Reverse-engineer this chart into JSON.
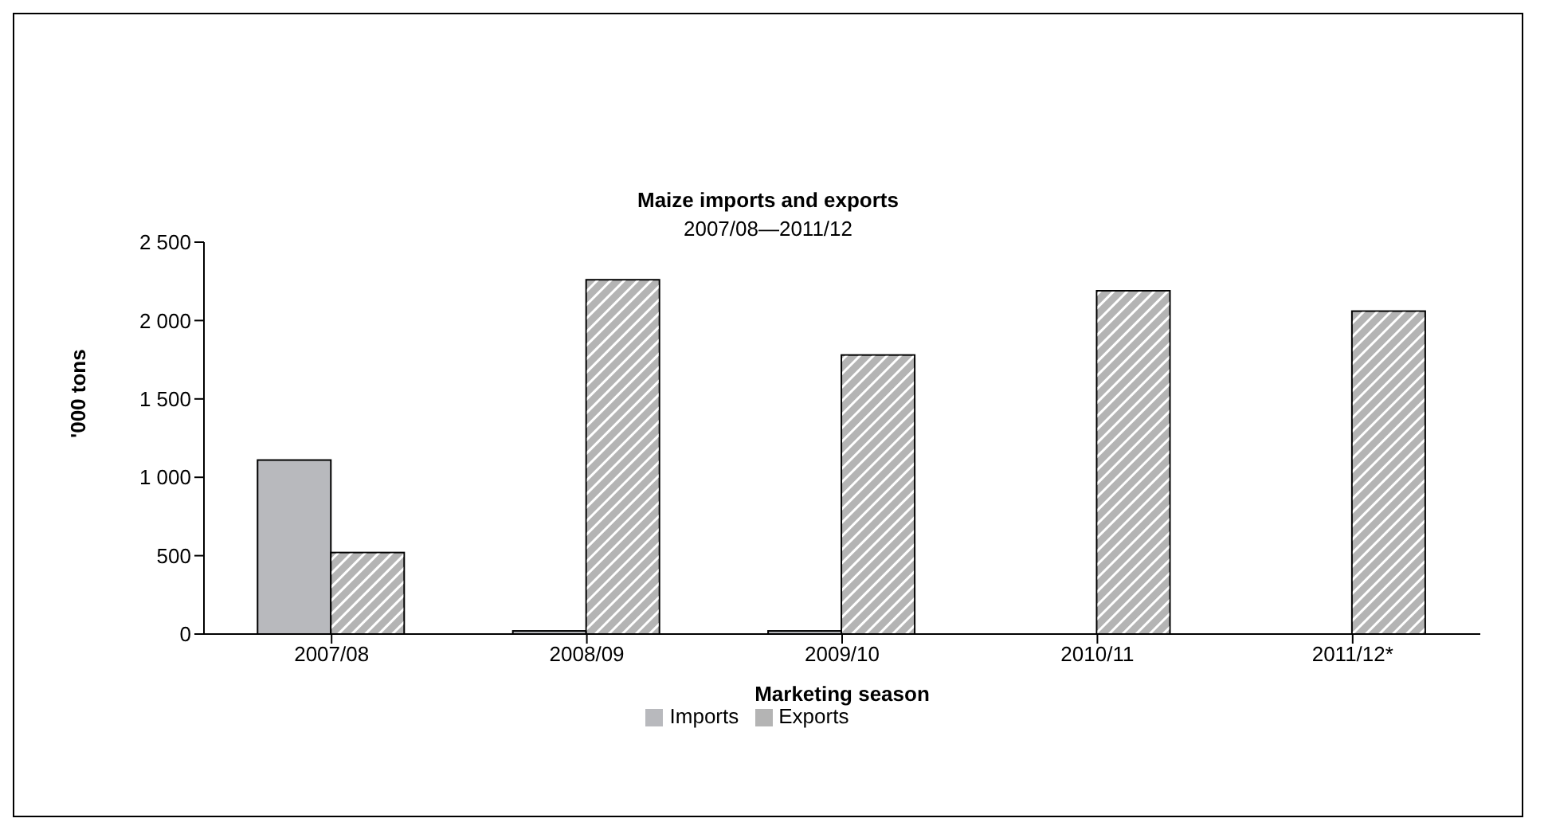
{
  "chart_data": {
    "type": "bar",
    "title": "Maize imports and exports",
    "subtitle": "2007/08—2011/12",
    "xlabel": "Marketing season",
    "ylabel": "'000 tons",
    "categories": [
      "2007/08",
      "2008/09",
      "2009/10",
      "2010/11",
      "2011/12*"
    ],
    "series": [
      {
        "name": "Imports",
        "color": "#b8b9bd",
        "values": [
          1110,
          20,
          20,
          0,
          0
        ]
      },
      {
        "name": "Exports",
        "color": "#b4b4b4",
        "values": [
          520,
          2260,
          1780,
          2190,
          2060
        ]
      }
    ],
    "ylim": [
      0,
      2500
    ],
    "yticks": [
      0,
      {
        "value": 500,
        "label": "500"
      },
      {
        "value": 1000,
        "label": "1 000"
      },
      {
        "value": 1500,
        "label": "1 500"
      },
      {
        "value": 2000,
        "label": "2 000"
      },
      {
        "value": 2500,
        "label": "2 500"
      }
    ],
    "grid": false,
    "legend": "bottom"
  }
}
